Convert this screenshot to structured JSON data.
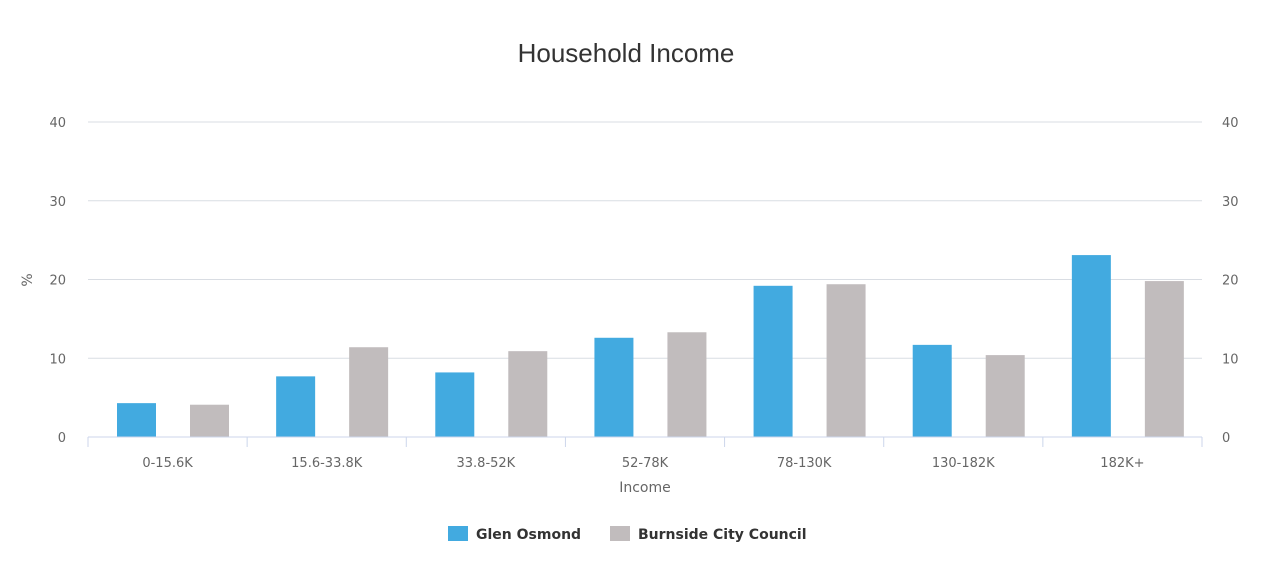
{
  "chart_data": {
    "type": "bar",
    "title": "Household Income",
    "xlabel": "Income",
    "ylabel": "%",
    "ylim": [
      0,
      40
    ],
    "yticks": [
      0,
      10,
      20,
      30,
      40
    ],
    "right_axis_ticks": [
      0,
      10,
      20,
      30,
      40
    ],
    "grid": true,
    "legend_position": "bottom-center",
    "categories": [
      "0-15.6K",
      "15.6-33.8K",
      "33.8-52K",
      "52-78K",
      "78-130K",
      "130-182K",
      "182K+"
    ],
    "series": [
      {
        "name": "Glen Osmond",
        "color": "#42aae0",
        "values": [
          4.3,
          7.7,
          8.2,
          12.6,
          19.2,
          11.7,
          23.1
        ]
      },
      {
        "name": "Burnside City Council",
        "color": "#c1bcbd",
        "values": [
          4.1,
          11.4,
          10.9,
          13.3,
          19.4,
          10.4,
          19.8
        ]
      }
    ]
  }
}
